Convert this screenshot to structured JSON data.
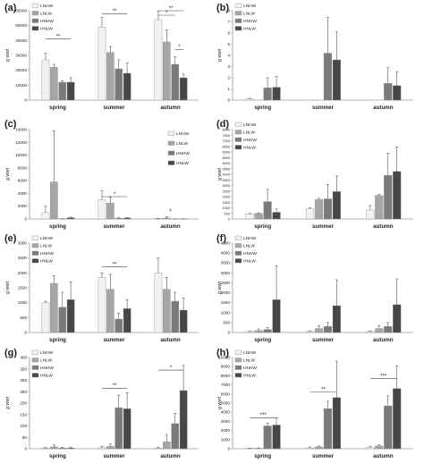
{
  "colors": {
    "LNHW": "#f2f2f2",
    "LNLW": "#a6a6a6",
    "HNHW": "#7a7a7a",
    "HNLW": "#474747",
    "axis": "#9a9a9a",
    "text": "#222222"
  },
  "chart_data": [
    {
      "panel_label": "(a)",
      "type": "bar",
      "ylabel": "g wwt",
      "categories": [
        "spring",
        "summer",
        "autumn"
      ],
      "ylim": [
        0,
        60000
      ],
      "yticks": [
        0,
        10000,
        20000,
        30000,
        40000,
        50000,
        60000
      ],
      "legend": true,
      "legend_position": "top-left",
      "series": [
        {
          "name": "LNHW",
          "values": [
            27000,
            49000,
            54000
          ],
          "errors": [
            4500,
            6500,
            5500
          ]
        },
        {
          "name": "LNLW",
          "values": [
            22000,
            32000,
            39000
          ],
          "errors": [
            2000,
            4000,
            8000
          ]
        },
        {
          "name": "HNHW",
          "values": [
            12000,
            21000,
            24000
          ],
          "errors": [
            1000,
            6000,
            5000
          ]
        },
        {
          "name": "HNLW",
          "values": [
            12000,
            18000,
            15000
          ],
          "errors": [
            3000,
            7000,
            2500
          ]
        }
      ],
      "significance": [
        {
          "label": "**",
          "from": [
            0,
            0
          ],
          "to": [
            0,
            3
          ],
          "y": 41000
        },
        {
          "label": "**",
          "from": [
            1,
            0
          ],
          "to": [
            1,
            3
          ],
          "y": 58000
        },
        {
          "label": "*",
          "from": [
            2,
            0
          ],
          "to": [
            2,
            2
          ],
          "y": 57000
        },
        {
          "label": "**",
          "from": [
            2,
            0
          ],
          "to": [
            2,
            3
          ],
          "y": 61000
        },
        {
          "label": "*",
          "from": [
            2,
            2
          ],
          "to": [
            2,
            3
          ],
          "y": 34000
        }
      ]
    },
    {
      "panel_label": "(b)",
      "type": "bar",
      "ylabel": "g wwt",
      "categories": [
        "spring",
        "summer",
        "autumn"
      ],
      "ylim": [
        0,
        8
      ],
      "yticks": [
        0,
        1,
        2,
        3,
        4,
        5,
        6,
        7,
        8
      ],
      "legend": true,
      "legend_position": "top-left",
      "series": [
        {
          "name": "LNHW",
          "values": [
            0.1,
            0,
            0
          ],
          "errors": [
            0.05,
            0,
            0
          ]
        },
        {
          "name": "LNLW",
          "values": [
            0,
            0,
            0
          ],
          "errors": [
            0,
            0,
            0
          ]
        },
        {
          "name": "HNHW",
          "values": [
            1.1,
            4.2,
            1.5
          ],
          "errors": [
            0.9,
            3.2,
            1.4
          ]
        },
        {
          "name": "HNLW",
          "values": [
            1.15,
            3.6,
            1.3
          ],
          "errors": [
            0.95,
            2.5,
            1.25
          ]
        }
      ],
      "significance": []
    },
    {
      "panel_label": "(c)",
      "type": "bar",
      "ylabel": "g wwt",
      "categories": [
        "spring",
        "summer",
        "autumn"
      ],
      "ylim": [
        0,
        14000
      ],
      "yticks": [
        0,
        2000,
        4000,
        6000,
        8000,
        10000,
        12000,
        14000
      ],
      "legend": true,
      "legend_position": "right",
      "series": [
        {
          "name": "LNHW",
          "values": [
            1000,
            3000,
            50
          ],
          "errors": [
            1000,
            1400,
            50
          ]
        },
        {
          "name": "LNLW",
          "values": [
            5800,
            2500,
            150
          ],
          "errors": [
            8000,
            900,
            200
          ]
        },
        {
          "name": "HNHW",
          "values": [
            30,
            100,
            20
          ],
          "errors": [
            30,
            100,
            20
          ]
        },
        {
          "name": "HNLW",
          "values": [
            200,
            150,
            20
          ],
          "errors": [
            100,
            80,
            20
          ]
        }
      ],
      "significance": [
        {
          "label": "*",
          "from": [
            1,
            0
          ],
          "to": [
            1,
            3
          ],
          "y": 3500
        }
      ],
      "annotations": [
        {
          "label": "x",
          "category": 2,
          "y": 1200
        }
      ]
    },
    {
      "panel_label": "(d)",
      "type": "bar",
      "ylabel": "g wwt",
      "categories": [
        "spring",
        "summer",
        "autumn"
      ],
      "ylim": [
        0,
        8000
      ],
      "yticks": [
        0,
        500,
        1000,
        1500,
        2000,
        2500,
        3000,
        3500,
        4000,
        4500,
        5000,
        5500,
        6000,
        6500,
        7000,
        7500,
        8000
      ],
      "legend": true,
      "legend_position": "top-left",
      "series": [
        {
          "name": "LNHW",
          "values": [
            450,
            900,
            800
          ],
          "errors": [
            50,
            100,
            400
          ]
        },
        {
          "name": "LNLW",
          "values": [
            500,
            1750,
            2100
          ],
          "errors": [
            50,
            100,
            100
          ]
        },
        {
          "name": "HNHW",
          "values": [
            1550,
            1800,
            3900
          ],
          "errors": [
            1100,
            1300,
            2000
          ]
        },
        {
          "name": "HNLW",
          "values": [
            600,
            2450,
            4250
          ],
          "errors": [
            300,
            1400,
            2200
          ]
        }
      ],
      "significance": []
    },
    {
      "panel_label": "(e)",
      "type": "bar",
      "ylabel": "g wwt",
      "categories": [
        "spring",
        "summer",
        "autumn"
      ],
      "ylim": [
        0,
        3000
      ],
      "yticks": [
        0,
        500,
        1000,
        1500,
        2000,
        2500,
        3000
      ],
      "legend": true,
      "legend_position": "top-left",
      "series": [
        {
          "name": "LNHW",
          "values": [
            1000,
            1850,
            2000
          ],
          "errors": [
            50,
            150,
            500
          ]
        },
        {
          "name": "LNLW",
          "values": [
            1650,
            1450,
            1450
          ],
          "errors": [
            250,
            500,
            400
          ]
        },
        {
          "name": "HNHW",
          "values": [
            850,
            450,
            1050
          ],
          "errors": [
            500,
            200,
            300
          ]
        },
        {
          "name": "HNLW",
          "values": [
            1100,
            800,
            750
          ],
          "errors": [
            600,
            300,
            400
          ]
        }
      ],
      "significance": [
        {
          "label": "**",
          "from": [
            1,
            0
          ],
          "to": [
            1,
            3
          ],
          "y": 2200
        }
      ]
    },
    {
      "panel_label": "(f)",
      "type": "bar",
      "ylabel": "g wwt",
      "categories": [
        "spring",
        "summer",
        "autumn"
      ],
      "ylim": [
        0,
        4500
      ],
      "yticks": [
        0,
        500,
        1000,
        1500,
        2000,
        2500,
        3000,
        3500,
        4000,
        4500
      ],
      "legend": true,
      "legend_position": "top-left",
      "series": [
        {
          "name": "LNHW",
          "values": [
            50,
            50,
            50
          ],
          "errors": [
            30,
            30,
            30
          ]
        },
        {
          "name": "LNLW",
          "values": [
            100,
            200,
            200
          ],
          "errors": [
            80,
            150,
            150
          ]
        },
        {
          "name": "HNHW",
          "values": [
            150,
            300,
            300
          ],
          "errors": [
            100,
            200,
            200
          ]
        },
        {
          "name": "HNLW",
          "values": [
            1650,
            1350,
            1400
          ],
          "errors": [
            1700,
            1300,
            1300
          ]
        }
      ],
      "significance": []
    },
    {
      "panel_label": "(g)",
      "type": "bar",
      "ylabel": "g wwt",
      "categories": [
        "spring",
        "summer",
        "autumn"
      ],
      "ylim": [
        0,
        400
      ],
      "yticks": [
        0,
        50,
        100,
        150,
        200,
        250,
        300,
        350,
        400
      ],
      "legend": true,
      "legend_position": "top-left",
      "series": [
        {
          "name": "LNHW",
          "values": [
            2,
            5,
            3
          ],
          "errors": [
            3,
            6,
            3
          ]
        },
        {
          "name": "LNLW",
          "values": [
            8,
            10,
            30
          ],
          "errors": [
            8,
            10,
            30
          ]
        },
        {
          "name": "HNHW",
          "values": [
            3,
            180,
            110
          ],
          "errors": [
            3,
            55,
            45
          ]
        },
        {
          "name": "HNLW",
          "values": [
            3,
            175,
            255
          ],
          "errors": [
            3,
            70,
            110
          ]
        }
      ],
      "significance": [
        {
          "label": "**",
          "from": [
            1,
            0
          ],
          "to": [
            1,
            3
          ],
          "y": 265
        },
        {
          "label": "*",
          "from": [
            2,
            0
          ],
          "to": [
            2,
            3
          ],
          "y": 345
        }
      ]
    },
    {
      "panel_label": "(h)",
      "type": "bar",
      "ylabel": "g wwt",
      "categories": [
        "spring",
        "summer",
        "autumn"
      ],
      "ylim": [
        0,
        10000
      ],
      "yticks": [
        0,
        1000,
        2000,
        3000,
        4000,
        5000,
        6000,
        7000,
        8000,
        9000,
        10000
      ],
      "legend": true,
      "legend_position": "top-left",
      "series": [
        {
          "name": "LNHW",
          "values": [
            30,
            100,
            150
          ],
          "errors": [
            30,
            80,
            80
          ]
        },
        {
          "name": "LNLW",
          "values": [
            50,
            200,
            300
          ],
          "errors": [
            40,
            100,
            150
          ]
        },
        {
          "name": "HNHW",
          "values": [
            2500,
            4400,
            4700
          ],
          "errors": [
            300,
            800,
            1100
          ]
        },
        {
          "name": "HNLW",
          "values": [
            2600,
            5600,
            6600
          ],
          "errors": [
            800,
            4000,
            2500
          ]
        }
      ],
      "significance": [
        {
          "label": "***",
          "from": [
            0,
            0
          ],
          "to": [
            0,
            3
          ],
          "y": 3400
        },
        {
          "label": "**",
          "from": [
            1,
            0
          ],
          "to": [
            1,
            3
          ],
          "y": 6200
        },
        {
          "label": "***",
          "from": [
            2,
            0
          ],
          "to": [
            2,
            3
          ],
          "y": 7700
        }
      ]
    }
  ]
}
